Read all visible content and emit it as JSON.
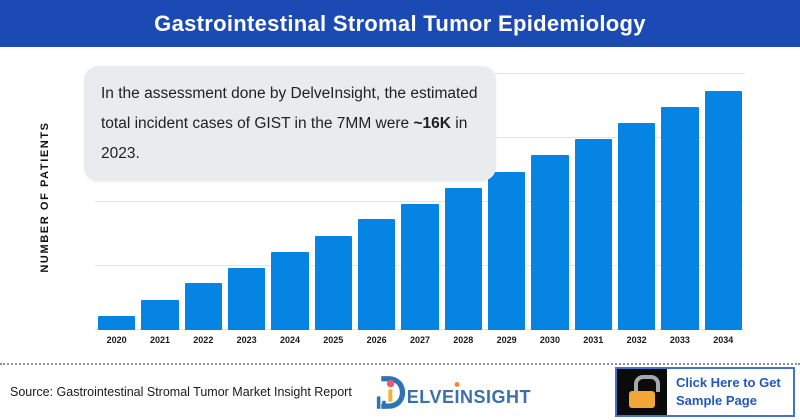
{
  "header": {
    "title": "Gastrointestinal Stromal Tumor Epidemiology"
  },
  "chart": {
    "y_axis_label": "NUMBER OF PATIENTS",
    "gridline_pct": [
      0,
      25,
      50,
      75,
      100
    ],
    "bar_color": "#0584E3",
    "gridline_color": "#E4E4E4"
  },
  "chart_data": {
    "type": "bar",
    "title": "Gastrointestinal Stromal Tumor Epidemiology",
    "categories": [
      "2020",
      "2021",
      "2022",
      "2023",
      "2024",
      "2025",
      "2026",
      "2027",
      "2028",
      "2029",
      "2030",
      "2031",
      "2032",
      "2033",
      "2034"
    ],
    "values": [
      3.6,
      7.7,
      12.1,
      16.0,
      20.1,
      24.3,
      28.6,
      32.5,
      36.6,
      40.8,
      45.2,
      49.3,
      53.4,
      57.5,
      61.7
    ],
    "bar_height_pct_of_plot": [
      5.5,
      11.7,
      18.4,
      24.2,
      30.5,
      36.7,
      43.4,
      49.2,
      55.5,
      61.7,
      68.4,
      74.6,
      80.9,
      87.1,
      93.4
    ],
    "xlabel": "",
    "ylabel": "NUMBER OF PATIENTS",
    "y_axis_unlabeled": true,
    "units_note": "y-axis shows no tick labels; values are estimated in thousands, anchored to ~16K total incident cases in 2023 per the annotation",
    "grid": true,
    "legend": "none"
  },
  "annotation": {
    "text_before": "In the assessment done by DelveInsight, the estimated total incident cases of GIST in the 7MM were ",
    "highlight": "~16K",
    "text_after": " in 2023."
  },
  "footer": {
    "source": "Source: Gastrointestinal Stromal Tumor Market Insight Report",
    "logo": {
      "mark": "D",
      "text_1": "ELVE",
      "text_i": "I",
      "text_2": "NSIGHT"
    },
    "button": {
      "label": "Click Here to Get Sample Page"
    }
  },
  "colors": {
    "header_bg": "#1C4AB5",
    "bar_blue": "#0584E3",
    "annotation_bg": "#E8ECEF",
    "button_border_blue": "#4472C4",
    "button_text_blue": "#2058C2",
    "padlock_orange": "#F2A636",
    "logo_blue": "#3A71AC",
    "logo_dot_orange": "#F08C2E"
  }
}
